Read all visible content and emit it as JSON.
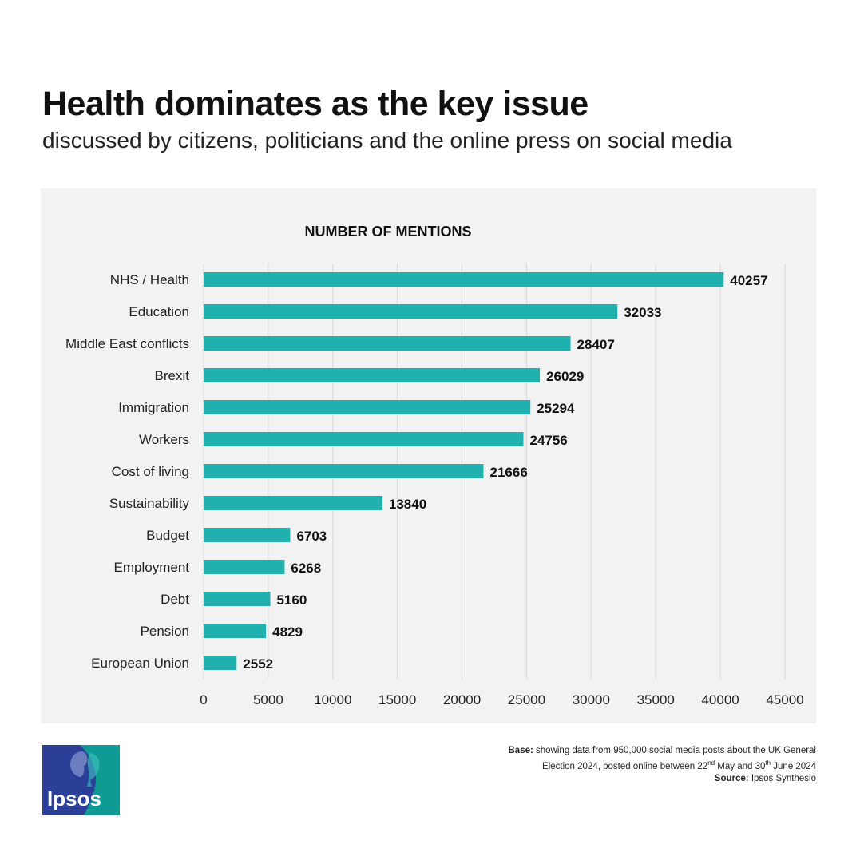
{
  "header": {
    "title": "Health dominates as the key issue",
    "subtitle": "discussed by citizens, politicians and the online press on social media"
  },
  "chart_data": {
    "type": "bar",
    "orientation": "horizontal",
    "title": "NUMBER OF MENTIONS",
    "categories": [
      "NHS / Health",
      "Education",
      "Middle East conflicts",
      "Brexit",
      "Immigration",
      "Workers",
      "Cost of living",
      "Sustainability",
      "Budget",
      "Employment",
      "Debt",
      "Pension",
      "European Union"
    ],
    "values": [
      40257,
      32033,
      28407,
      26029,
      25294,
      24756,
      21666,
      13840,
      6703,
      6268,
      5160,
      4829,
      2552
    ],
    "xlim": [
      0,
      45000
    ],
    "xticks": [
      0,
      5000,
      10000,
      15000,
      20000,
      25000,
      30000,
      35000,
      40000,
      45000
    ],
    "grid": true,
    "bar_color": "#20b0ad",
    "data_labels": true
  },
  "footer": {
    "base_label": "Base:",
    "base_text_1": "showing data from 950,000 social media posts about the UK General",
    "base_text_2a": "Election 2024, posted online between 22",
    "base_sup_1": "nd",
    "base_text_2b": " May and 30",
    "base_sup_2": "th",
    "base_text_2c": " June 2024",
    "source_label": "Source:",
    "source_text": "Ipsos Synthesio"
  },
  "logo": {
    "text": "Ipsos",
    "color_left": "#2b3f98",
    "color_right": "#0f9a93"
  }
}
